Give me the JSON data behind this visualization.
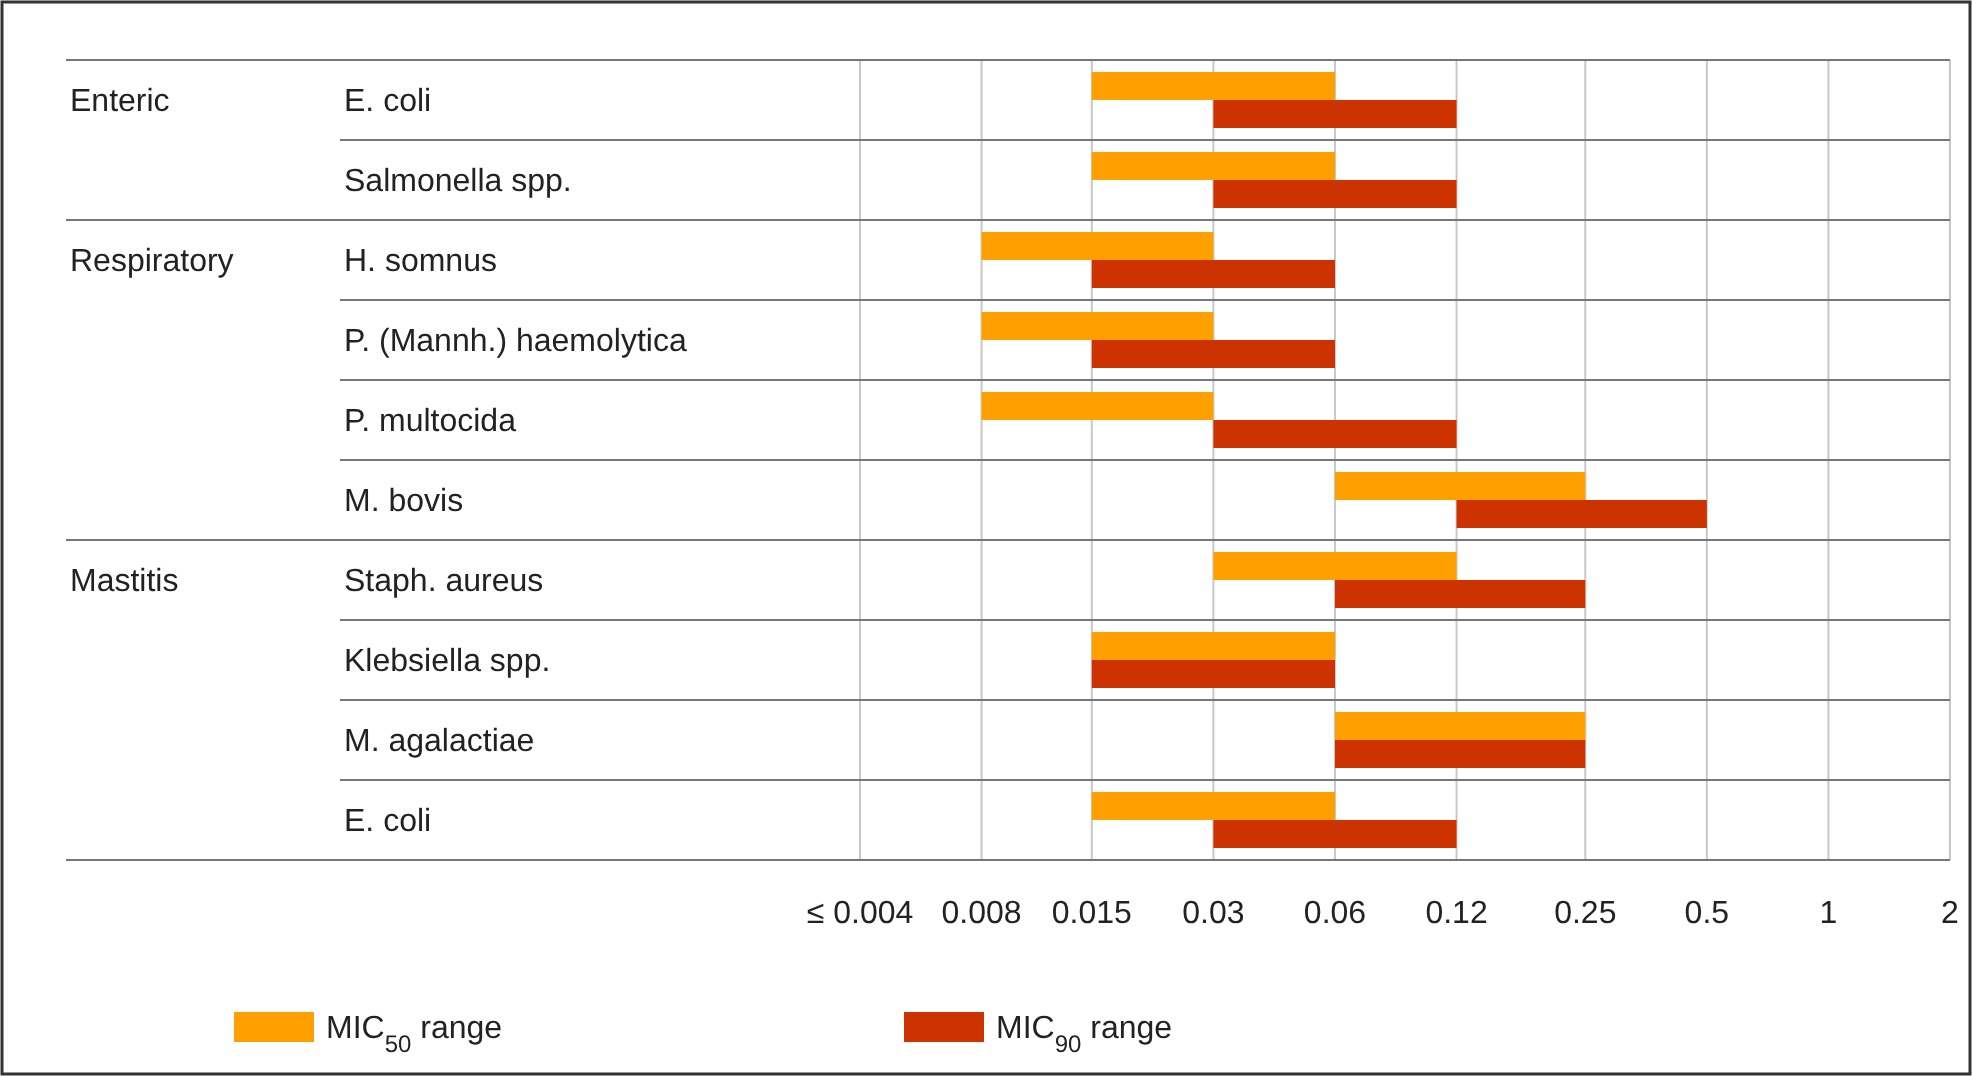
{
  "chart_data": {
    "type": "bar",
    "orientation": "horizontal",
    "log": "x",
    "grid": "x",
    "legend": "bottom left",
    "categories": [
      "E. coli",
      "Salmonella spp.",
      "H. somnus",
      "P. (Mannh.) haemolytica",
      "P. multocida",
      "M. bovis",
      "Staph. aureus",
      "Klebsiella spp.",
      "M. agalactiae",
      "E. coli"
    ],
    "series": [
      {
        "name": "MIC$_{50}$ range",
        "color": "#ffa000",
        "base": [
          0.015,
          0.015,
          0.008,
          0.008,
          0.008,
          0.06,
          0.03,
          0.015,
          0.06,
          0.015
        ],
        "values": [
          0.045,
          0.045,
          0.022,
          0.022,
          0.022,
          0.19,
          0.09,
          0.045,
          0.19,
          0.045
        ]
      },
      {
        "name": "MIC$_{90}$ range",
        "color": "#cc3300",
        "base": [
          0.03,
          0.03,
          0.015,
          0.015,
          0.03,
          0.12,
          0.06,
          0.015,
          0.06,
          0.03
        ],
        "values": [
          0.09,
          0.09,
          0.045,
          0.045,
          0.09,
          0.38,
          0.19,
          0.045,
          0.19,
          0.09
        ]
      }
    ],
    "xlim": [
      0.004,
      2
    ],
    "xticks": [
      {
        "value": 0.004,
        "label": "≤ 0.004"
      },
      0.008,
      0.015,
      0.03,
      0.06,
      0.12,
      0.25,
      0.5,
      1,
      2
    ],
    "annotations": [
      "Enteric",
      "Respiratory",
      "Mastitis"
    ]
  }
}
